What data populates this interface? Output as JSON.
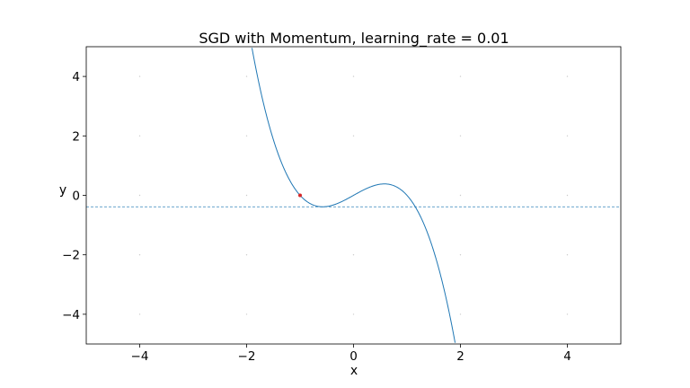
{
  "chart_data": {
    "type": "line",
    "title": "SGD with Momentum, learning_rate = 0.01",
    "xlabel": "x",
    "ylabel": "y",
    "xlim": [
      -5,
      5
    ],
    "ylim": [
      -5,
      5
    ],
    "xticks": [
      -4,
      -2,
      0,
      2,
      4
    ],
    "yticks": [
      -4,
      -2,
      0,
      2,
      4
    ],
    "xtick_labels": [
      "−4",
      "−2",
      "0",
      "2",
      "4"
    ],
    "ytick_labels": [
      "−4",
      "−2",
      "0",
      "2",
      "4"
    ],
    "grid": "dotted points",
    "series": [
      {
        "kind": "function",
        "expression": "y = -x^3 + x",
        "x_range": [
          -1.9,
          1.9
        ],
        "color": "#1f77b4"
      }
    ],
    "reference_lines": [
      {
        "orientation": "horizontal",
        "y": -0.385,
        "style": "dashed",
        "color": "#1f77b4"
      }
    ],
    "points": [
      {
        "x": -1.0,
        "y": 0.0,
        "color": "#d62728"
      }
    ]
  }
}
